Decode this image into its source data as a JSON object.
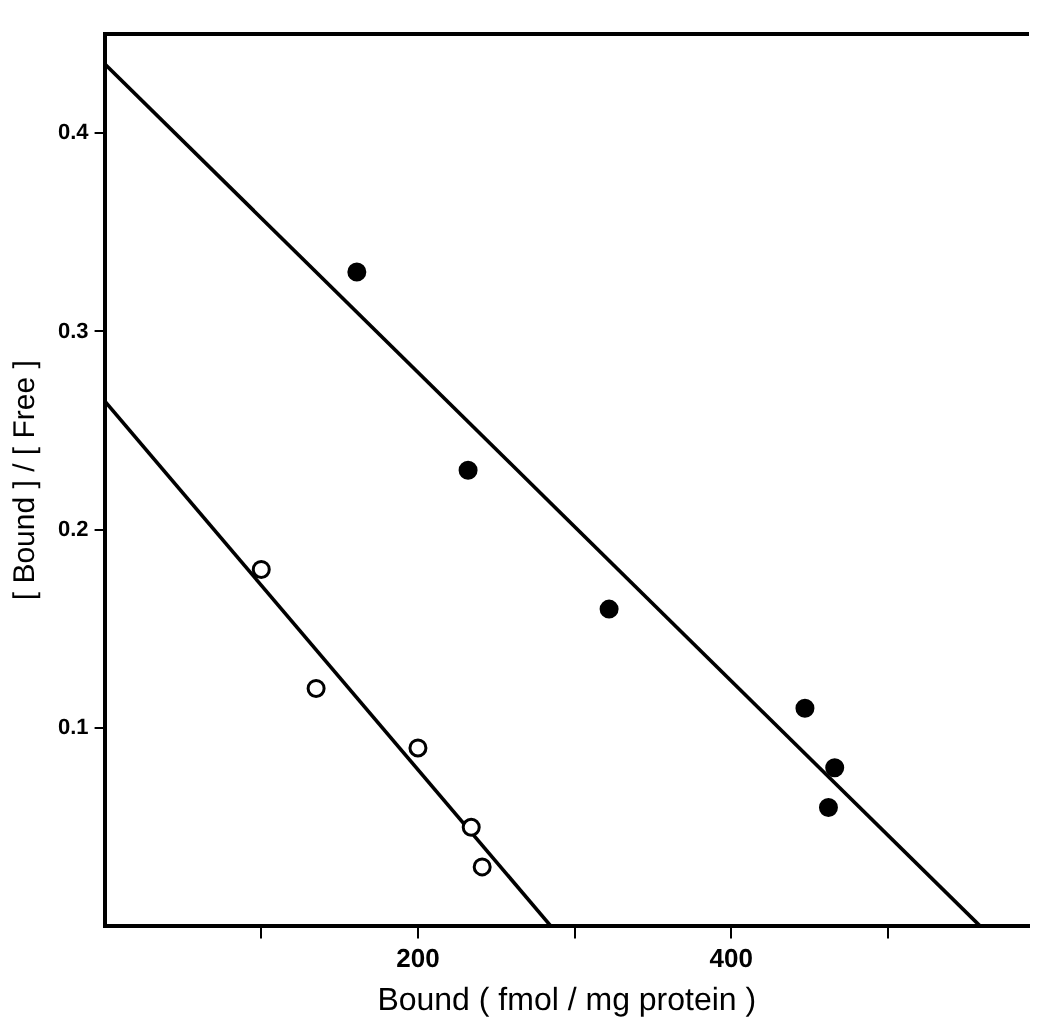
{
  "chart_data": {
    "type": "scatter",
    "xlabel": "Bound ( fmol / mg protein )",
    "ylabel": "[ Bound ] / [ Free ]",
    "xlim": [
      0,
      590
    ],
    "ylim": [
      0,
      0.45
    ],
    "xticks": [
      {
        "value": 100,
        "label": null
      },
      200,
      {
        "value": 300,
        "label": null
      },
      400,
      {
        "value": 500,
        "label": null
      }
    ],
    "yticks": [
      0.1,
      0.2,
      0.3,
      0.4
    ],
    "grid": false,
    "legend": false,
    "marker": "circle",
    "series": [
      {
        "color": "#000000",
        "x": [
          161,
          232,
          322,
          447,
          466,
          462
        ],
        "values": [
          0.33,
          0.23,
          0.16,
          0.11,
          0.08,
          0.06
        ]
      },
      {
        "color": "#000000",
        "x": [
          100,
          135,
          200,
          234,
          241
        ],
        "values": [
          0.18,
          0.12,
          0.09,
          0.05,
          0.03
        ]
      },
      {
        "type": "line",
        "marker": "none",
        "color": "#000000",
        "x": [
          0,
          559
        ],
        "values": [
          0.435,
          0
        ]
      },
      {
        "type": "line",
        "marker": "none",
        "color": "#000000",
        "x": [
          0,
          285
        ],
        "values": [
          0.265,
          0
        ]
      }
    ]
  }
}
